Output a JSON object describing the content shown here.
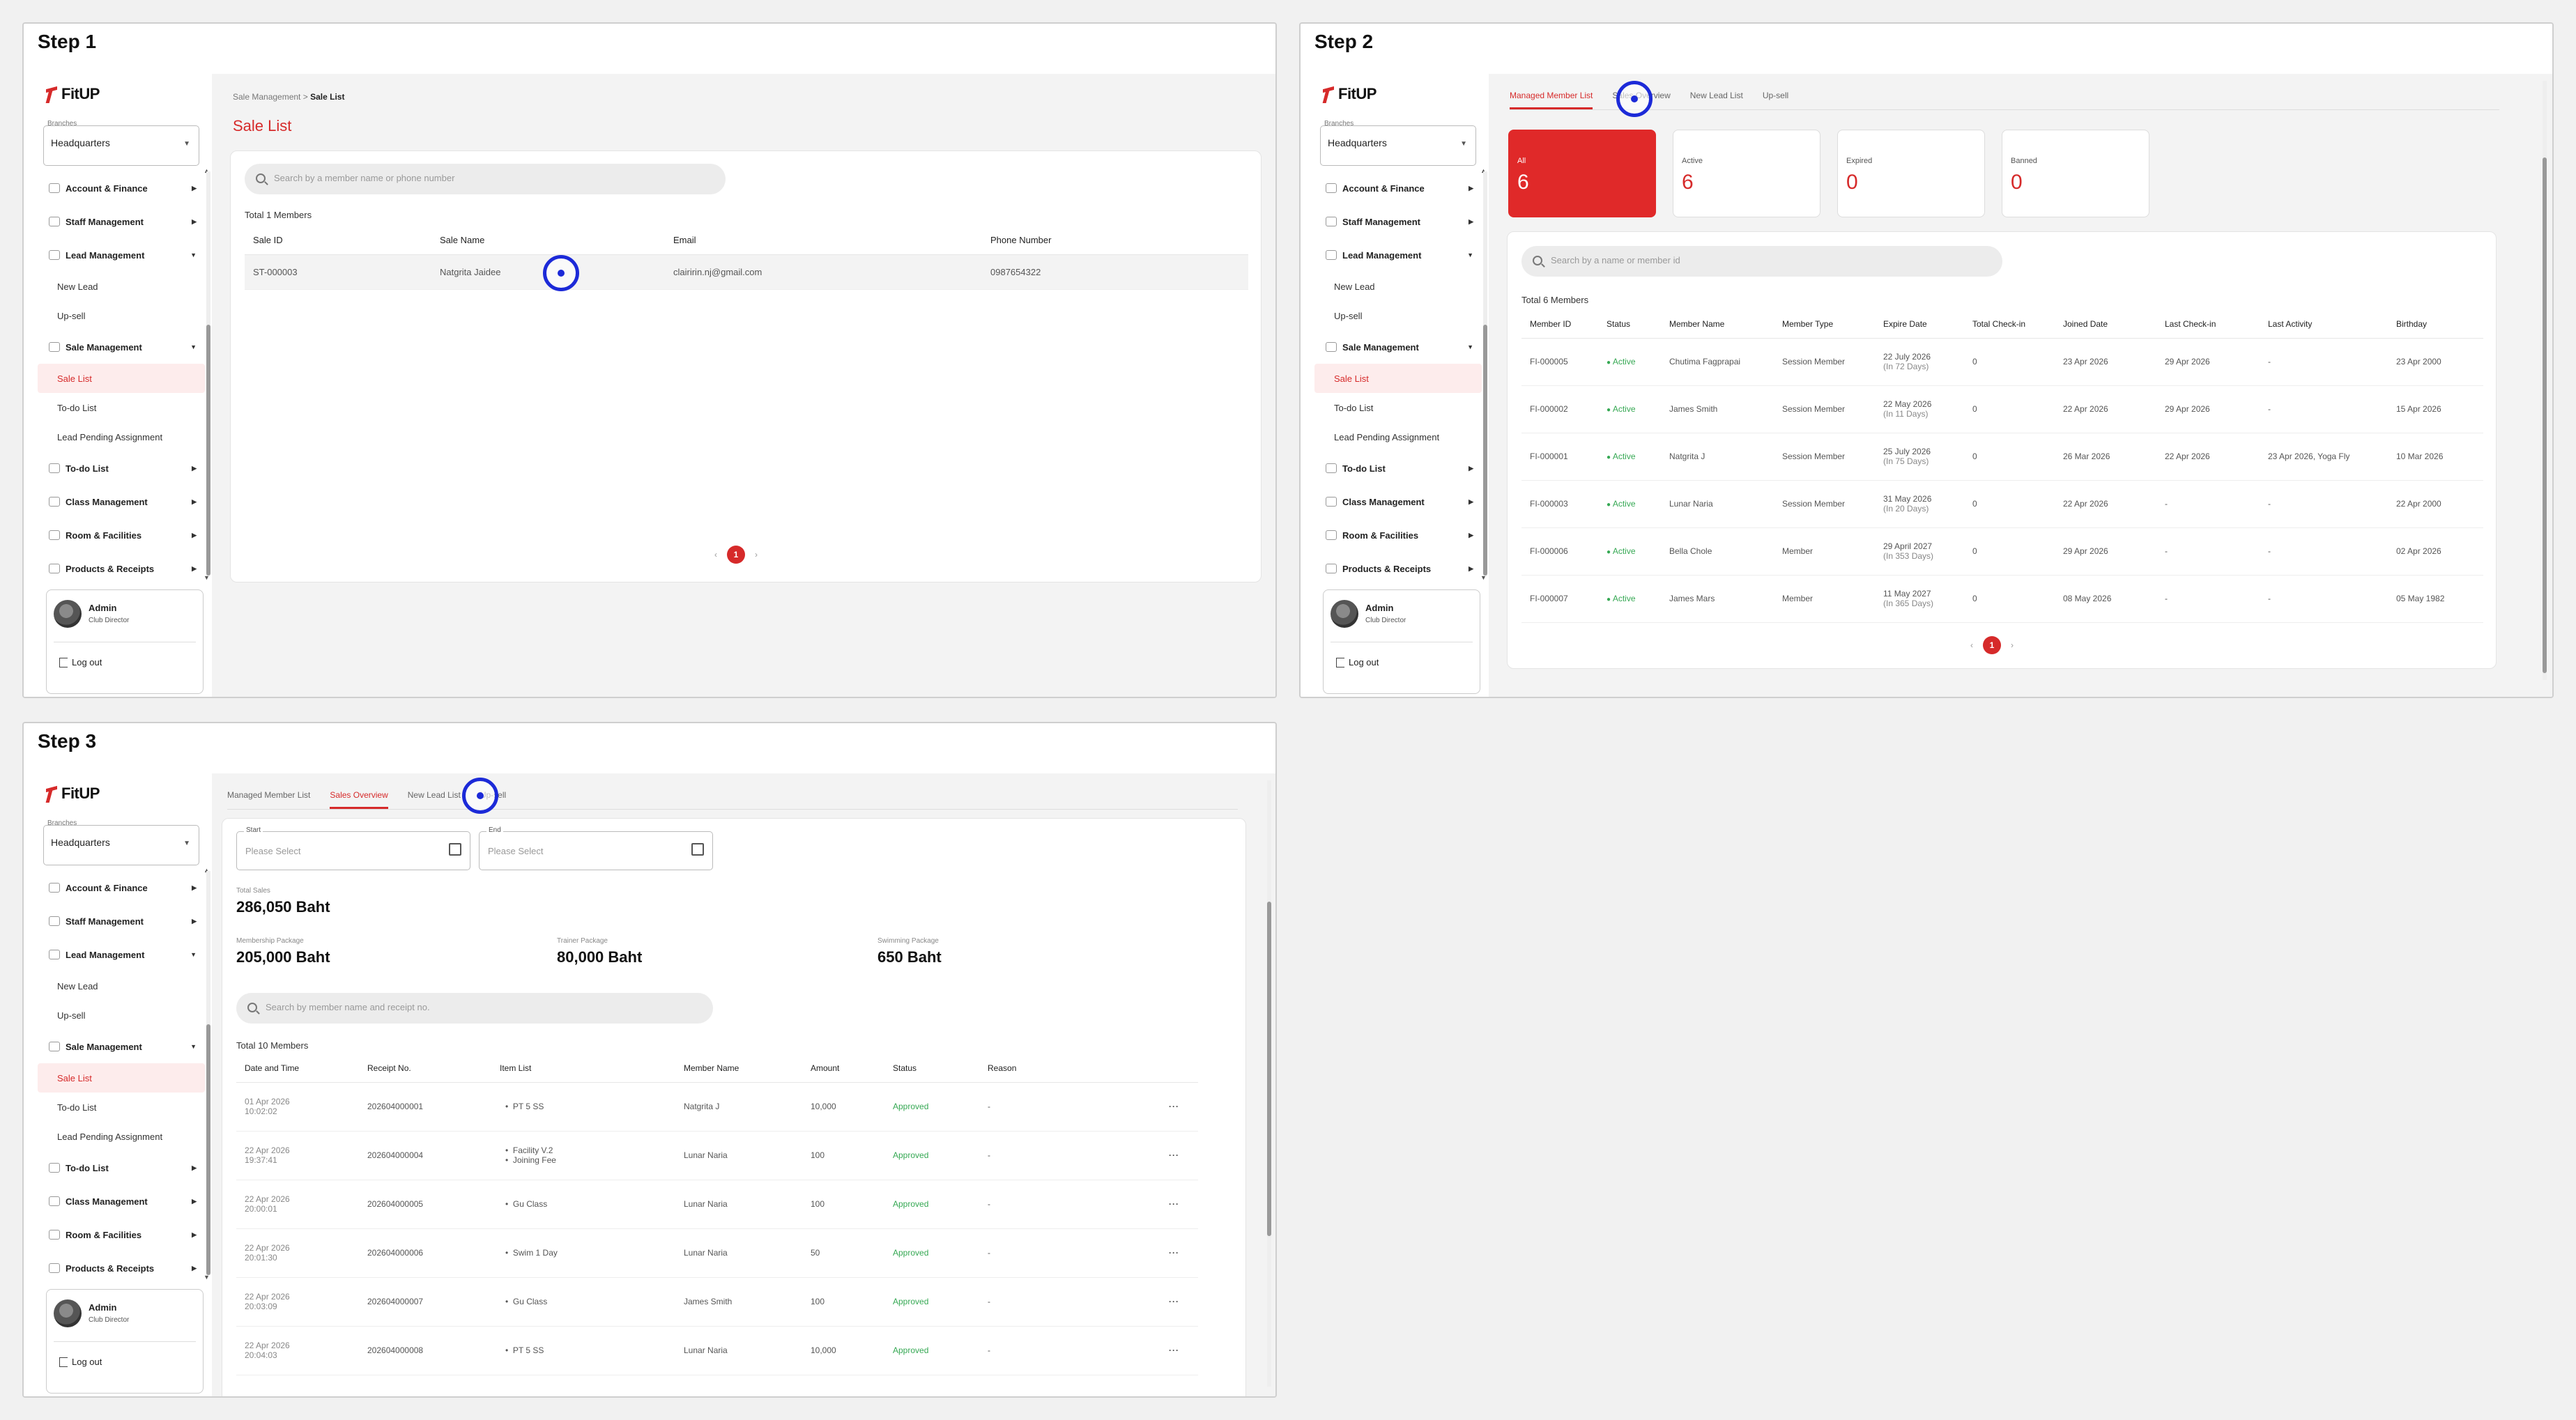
{
  "steps": [
    "Step 1",
    "Step 2",
    "Step 3"
  ],
  "brand": {
    "logo": "FitUP",
    "accent": "#d62a2a"
  },
  "sidebar": {
    "branch_label": "Branches",
    "branch_value": "Headquarters",
    "items": {
      "account": "Account & Finance",
      "staff": "Staff Management",
      "lead": "Lead Management",
      "new_lead": "New Lead",
      "upsell": "Up-sell",
      "sale": "Sale Management",
      "sale_list": "Sale List",
      "todo_sub": "To-do List",
      "lead_pending": "Lead Pending Assignment",
      "todo": "To-do List",
      "class": "Class Management",
      "room": "Room & Facilities",
      "products": "Products & Receipts"
    },
    "profile": {
      "name": "Admin",
      "role": "Club Director",
      "logout": "Log out"
    }
  },
  "step1": {
    "breadcrumb_parent": "Sale Management",
    "breadcrumb_sep": ">",
    "breadcrumb_current": "Sale List",
    "title": "Sale List",
    "search_placeholder": "Search by a member name or phone number",
    "total": "Total 1 Members",
    "columns": [
      "Sale ID",
      "Sale Name",
      "Email",
      "Phone Number"
    ],
    "rows": [
      [
        "ST-000003",
        "Natgrita Jaidee",
        "clairirin.nj@gmail.com",
        "0987654322"
      ]
    ],
    "page": "1"
  },
  "step2": {
    "tabs": [
      "Managed Member List",
      "Sales Overview",
      "New Lead List",
      "Up-sell"
    ],
    "stats": [
      {
        "label": "All",
        "value": "6"
      },
      {
        "label": "Active",
        "value": "6"
      },
      {
        "label": "Expired",
        "value": "0"
      },
      {
        "label": "Banned",
        "value": "0"
      }
    ],
    "search_placeholder": "Search by a name or member id",
    "total": "Total 6 Members",
    "columns": [
      "Member ID",
      "Status",
      "Member Name",
      "Member Type",
      "Expire Date",
      "Total Check-in",
      "Joined Date",
      "Last Check-in",
      "Last Activity",
      "Birthday"
    ],
    "rows": [
      {
        "id": "FI-000005",
        "status": "Active",
        "name": "Chutima Fagprapai",
        "type": "Session Member",
        "expire": "22 July 2026",
        "remain": "(In 72 Days)",
        "checkins": "0",
        "joined": "23 Apr 2026",
        "last_checkin": "29 Apr 2026",
        "last_activity": "-",
        "birthday": "23 Apr 2000"
      },
      {
        "id": "FI-000002",
        "status": "Active",
        "name": "James Smith",
        "type": "Session Member",
        "expire": "22 May 2026",
        "remain": "(In 11 Days)",
        "checkins": "0",
        "joined": "22 Apr 2026",
        "last_checkin": "29 Apr 2026",
        "last_activity": "-",
        "birthday": "15 Apr 2026"
      },
      {
        "id": "FI-000001",
        "status": "Active",
        "name": "Natgrita J",
        "type": "Session Member",
        "expire": "25 July 2026",
        "remain": "(In 75 Days)",
        "checkins": "0",
        "joined": "26 Mar 2026",
        "last_checkin": "22 Apr 2026",
        "last_activity": "23 Apr 2026, Yoga Fly",
        "birthday": "10 Mar 2026"
      },
      {
        "id": "FI-000003",
        "status": "Active",
        "name": "Lunar Naria",
        "type": "Session Member",
        "expire": "31 May 2026",
        "remain": "(In 20 Days)",
        "checkins": "0",
        "joined": "22 Apr 2026",
        "last_checkin": "-",
        "last_activity": "-",
        "birthday": "22 Apr 2000"
      },
      {
        "id": "FI-000006",
        "status": "Active",
        "name": "Bella Chole",
        "type": "Member",
        "expire": "29 April 2027",
        "remain": "(In 353 Days)",
        "checkins": "0",
        "joined": "29 Apr 2026",
        "last_checkin": "-",
        "last_activity": "-",
        "birthday": "02 Apr 2026"
      },
      {
        "id": "FI-000007",
        "status": "Active",
        "name": "James Mars",
        "type": "Member",
        "expire": "11 May 2027",
        "remain": "(In 365 Days)",
        "checkins": "0",
        "joined": "08 May 2026",
        "last_checkin": "-",
        "last_activity": "-",
        "birthday": "05 May 1982"
      }
    ],
    "page": "1"
  },
  "step3": {
    "tabs": [
      "Managed Member List",
      "Sales Overview",
      "New Lead List",
      "Up-sell"
    ],
    "start_label": "Start",
    "end_label": "End",
    "date_placeholder": "Please Select",
    "total_sales_label": "Total Sales",
    "total_sales": "286,050 Baht",
    "membership_label": "Membership Package",
    "membership": "205,000 Baht",
    "trainer_label": "Trainer Package",
    "trainer": "80,000 Baht",
    "swimming_label": "Swimming Package",
    "swimming": "650 Baht",
    "search_placeholder": "Search by member name and receipt no.",
    "total": "Total 10 Members",
    "columns": [
      "Date and Time",
      "Receipt No.",
      "Item List",
      "Member Name",
      "Amount",
      "Status",
      "Reason"
    ],
    "rows": [
      {
        "date": "01 Apr 2026",
        "time": "10:02:02",
        "receipt": "202604000001",
        "items": [
          "PT 5 SS"
        ],
        "member": "Natgrita J",
        "amount": "10,000",
        "status": "Approved",
        "reason": "-"
      },
      {
        "date": "22 Apr 2026",
        "time": "19:37:41",
        "receipt": "202604000004",
        "items": [
          "Facility V.2",
          "Joining Fee"
        ],
        "member": "Lunar Naria",
        "amount": "100",
        "status": "Approved",
        "reason": "-"
      },
      {
        "date": "22 Apr 2026",
        "time": "20:00:01",
        "receipt": "202604000005",
        "items": [
          "Gu Class"
        ],
        "member": "Lunar Naria",
        "amount": "100",
        "status": "Approved",
        "reason": "-"
      },
      {
        "date": "22 Apr 2026",
        "time": "20:01:30",
        "receipt": "202604000006",
        "items": [
          "Swim 1 Day"
        ],
        "member": "Lunar Naria",
        "amount": "50",
        "status": "Approved",
        "reason": "-"
      },
      {
        "date": "22 Apr 2026",
        "time": "20:03:09",
        "receipt": "202604000007",
        "items": [
          "Gu Class"
        ],
        "member": "James Smith",
        "amount": "100",
        "status": "Approved",
        "reason": "-"
      },
      {
        "date": "22 Apr 2026",
        "time": "20:04:03",
        "receipt": "202604000008",
        "items": [
          "PT 5 SS"
        ],
        "member": "Lunar Naria",
        "amount": "10,000",
        "status": "Approved",
        "reason": "-"
      }
    ],
    "more": "···"
  },
  "icons": [
    "logo-icon",
    "search-icon",
    "calendar-icon",
    "chevron-down-icon",
    "logout-icon",
    "more-icon",
    "click-indicator-icon"
  ]
}
